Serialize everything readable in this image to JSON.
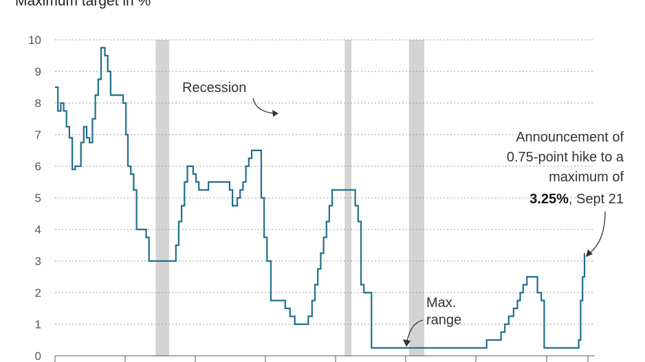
{
  "chart_data": {
    "type": "line",
    "subtitle": "Maximum target in %",
    "ylim": [
      0,
      10
    ],
    "yticks": [
      0,
      1,
      2,
      3,
      4,
      5,
      6,
      7,
      8,
      9,
      10
    ],
    "ytick_labels": [
      "0",
      "1",
      "2",
      "3",
      "4",
      "5",
      "6",
      "7",
      "8",
      "9",
      "10"
    ],
    "grid": "horizontal dotted",
    "line_color": "#1f6e8c",
    "recession_color": "#d4d4d4",
    "recessions": [
      [
        1981.5,
        1982.9
      ],
      [
        2001.2,
        2001.9
      ],
      [
        2007.9,
        2009.5
      ]
    ],
    "series": [
      {
        "values": [
          [
            1971.0,
            8.5
          ],
          [
            1971.3,
            7.75
          ],
          [
            1971.6,
            8.0
          ],
          [
            1971.9,
            7.75
          ],
          [
            1972.2,
            7.25
          ],
          [
            1972.5,
            6.9
          ],
          [
            1972.8,
            5.9
          ],
          [
            1973.1,
            6.0
          ],
          [
            1973.7,
            6.75
          ],
          [
            1974.0,
            7.25
          ],
          [
            1974.3,
            6.9
          ],
          [
            1974.6,
            6.75
          ],
          [
            1974.9,
            7.5
          ],
          [
            1975.2,
            8.25
          ],
          [
            1975.5,
            8.75
          ],
          [
            1975.8,
            9.75
          ],
          [
            1976.2,
            9.5
          ],
          [
            1976.5,
            9.0
          ],
          [
            1976.8,
            8.25
          ],
          [
            1978.1,
            8.0
          ],
          [
            1978.4,
            7.0
          ],
          [
            1978.6,
            6.0
          ],
          [
            1978.9,
            5.75
          ],
          [
            1979.2,
            5.25
          ],
          [
            1979.5,
            4.0
          ],
          [
            1980.5,
            3.75
          ],
          [
            1980.8,
            3.0
          ],
          [
            1983.6,
            3.5
          ],
          [
            1983.9,
            4.25
          ],
          [
            1984.2,
            4.75
          ],
          [
            1984.5,
            5.5
          ],
          [
            1984.8,
            6.0
          ],
          [
            1985.4,
            5.75
          ],
          [
            1985.7,
            5.5
          ],
          [
            1986.0,
            5.25
          ],
          [
            1987.0,
            5.5
          ],
          [
            1989.2,
            5.25
          ],
          [
            1989.5,
            4.75
          ],
          [
            1990.0,
            5.0
          ],
          [
            1990.3,
            5.25
          ],
          [
            1990.6,
            5.5
          ],
          [
            1990.9,
            6.0
          ],
          [
            1991.2,
            6.25
          ],
          [
            1991.5,
            6.5
          ],
          [
            1992.5,
            5.0
          ],
          [
            1992.8,
            3.75
          ],
          [
            1993.1,
            3.0
          ],
          [
            1993.5,
            1.75
          ],
          [
            1995.0,
            1.5
          ],
          [
            1995.5,
            1.25
          ],
          [
            1996.0,
            1.0
          ],
          [
            1997.4,
            1.25
          ],
          [
            1997.8,
            1.75
          ],
          [
            1998.1,
            2.25
          ],
          [
            1998.4,
            2.75
          ],
          [
            1998.7,
            3.25
          ],
          [
            1999.0,
            3.75
          ],
          [
            1999.3,
            4.25
          ],
          [
            1999.6,
            4.75
          ],
          [
            1999.9,
            5.25
          ],
          [
            2002.3,
            4.75
          ],
          [
            2002.6,
            4.25
          ],
          [
            2002.9,
            2.25
          ],
          [
            2003.2,
            2.0
          ],
          [
            2004.0,
            0.25
          ],
          [
            2016.0,
            0.5
          ],
          [
            2017.5,
            0.75
          ],
          [
            2017.9,
            1.0
          ],
          [
            2018.3,
            1.25
          ],
          [
            2018.8,
            1.5
          ],
          [
            2019.2,
            1.75
          ],
          [
            2019.5,
            2.0
          ],
          [
            2019.8,
            2.25
          ],
          [
            2020.2,
            2.5
          ],
          [
            2021.3,
            2.0
          ],
          [
            2021.7,
            1.75
          ],
          [
            2022.0,
            0.25
          ],
          [
            2025.6,
            0.5
          ],
          [
            2025.8,
            1.75
          ],
          [
            2026.0,
            2.5
          ],
          [
            2026.2,
            3.25
          ]
        ]
      }
    ],
    "annotations": [
      {
        "text": "Recession"
      },
      {
        "text": "Max."
      },
      {
        "text": "range"
      },
      {
        "text": "Announcement of"
      },
      {
        "text": "0.75-point hike to a"
      },
      {
        "text": "maximum of"
      },
      {
        "text": "3.25%",
        "bold": true
      },
      {
        "text": ", Sept 21"
      }
    ]
  }
}
